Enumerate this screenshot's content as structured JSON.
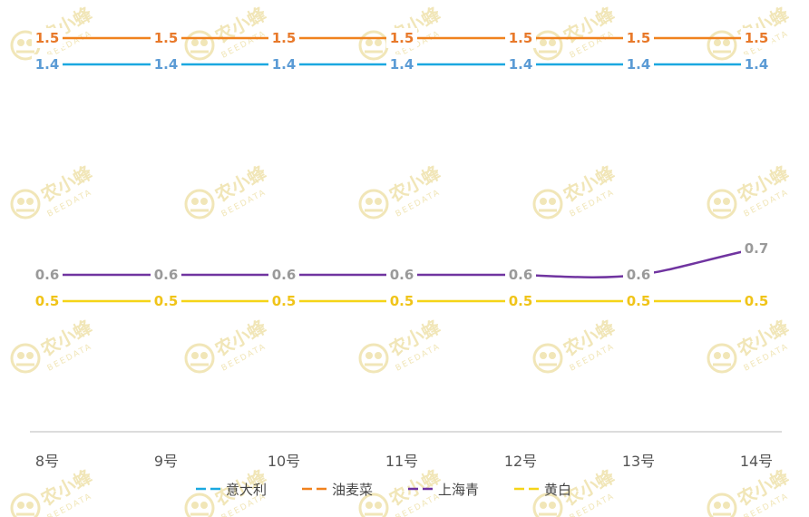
{
  "chart_data": {
    "type": "line",
    "categories": [
      "8号",
      "9号",
      "10号",
      "11号",
      "12号",
      "13号",
      "14号"
    ],
    "series": [
      {
        "name": "意大利",
        "color": "#1aa8e0",
        "label_color": "#5b9bd5",
        "values": [
          1.4,
          1.4,
          1.4,
          1.4,
          1.4,
          1.4,
          1.4
        ]
      },
      {
        "name": "油麦菜",
        "color": "#f0821e",
        "label_color": "#e8792a",
        "values": [
          1.5,
          1.5,
          1.5,
          1.5,
          1.5,
          1.5,
          1.5
        ]
      },
      {
        "name": "上海青",
        "color": "#7034a0",
        "label_color": "#9a9a9a",
        "values": [
          0.6,
          0.6,
          0.6,
          0.6,
          0.6,
          0.6,
          0.7
        ]
      },
      {
        "name": "黄白",
        "color": "#f5d418",
        "label_color": "#f0c419",
        "values": [
          0.5,
          0.5,
          0.5,
          0.5,
          0.5,
          0.5,
          0.5
        ]
      }
    ],
    "ylim": [
      0,
      1.6
    ],
    "grid": false,
    "legend_position": "bottom-center",
    "watermark": {
      "text": "农小蜂",
      "sub": "BEEDATA",
      "logo": "bee-logo-icon"
    }
  }
}
